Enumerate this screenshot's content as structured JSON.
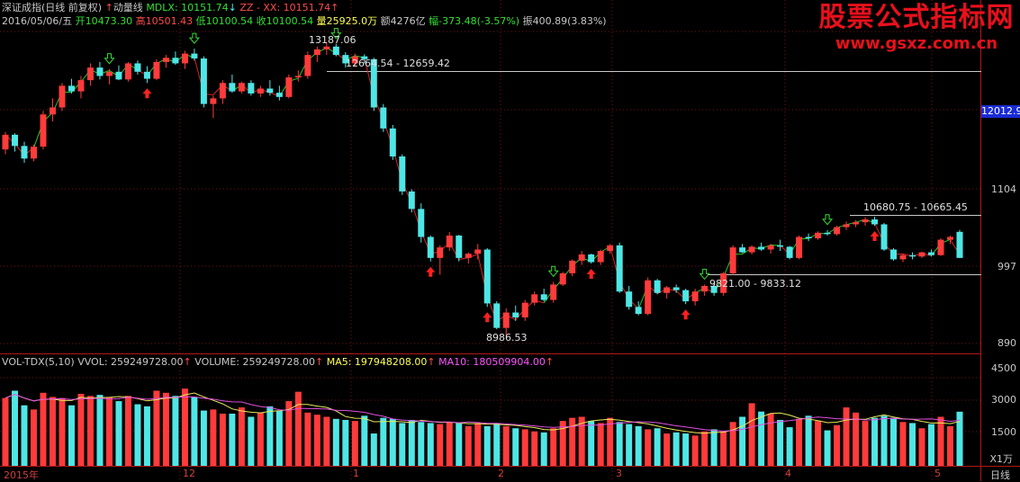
{
  "header": {
    "title": "深证成指(日线 前复权)",
    "indicator_name": "动量线",
    "mdlx": "MDLX: 10151.74",
    "zz": "ZZ - XX: 10151.74",
    "ohlc": {
      "date": "2016/05/06/五",
      "open": "开10473.30",
      "high": "高10501.43",
      "low": "低10100.54",
      "close": "收10100.54",
      "volume": "量25925.0万",
      "amount": "额4276亿",
      "change": "幅-373.48(-3.57%)",
      "amplitude": "振400.89(3.83%)"
    }
  },
  "watermark": {
    "title": "股票公式指标网",
    "url": "www.gsxz.com.cn"
  },
  "price_axis": {
    "labels": [
      "1104",
      "997",
      "890"
    ],
    "highlight": "12012.9"
  },
  "annotations": {
    "peak": "13187.06",
    "range1": "12664.54 - 12659.42",
    "low": "8986.53",
    "range2": "9821.00 - 9833.12",
    "range3": "10680.75 - 10665.45"
  },
  "volume_panel": {
    "name": "VOL-TDX(5,10)",
    "vvol": "VVOL: 259249728.00",
    "volume": "VOLUME: 259249728.00",
    "ma5": "MA5: 197948208.00",
    "ma10": "MA10: 180509904.00",
    "axis_labels": [
      "4500",
      "3000",
      "1500"
    ],
    "unit": "X1万"
  },
  "x_axis": {
    "labels": [
      "2015年",
      "12",
      "1",
      "2",
      "3",
      "4",
      "5"
    ],
    "period": "日线"
  },
  "colors": {
    "up": "#ff3b3b",
    "down": "#4fe6e6",
    "ma5": "#e8e85a",
    "ma10": "#e050e0",
    "grid": "#7a1010"
  },
  "chart_data": {
    "type": "candlestick",
    "price_range": [
      8800,
      13400
    ],
    "volume_range": [
      0,
      5000
    ],
    "candles": [
      [
        11650,
        11900,
        11580,
        11860
      ],
      [
        11860,
        11880,
        11620,
        11700
      ],
      [
        11700,
        11760,
        11460,
        11520
      ],
      [
        11520,
        11720,
        11480,
        11690
      ],
      [
        11690,
        12200,
        11650,
        12150
      ],
      [
        12150,
        12380,
        12050,
        12250
      ],
      [
        12250,
        12600,
        12200,
        12560
      ],
      [
        12560,
        12660,
        12450,
        12480
      ],
      [
        12480,
        12700,
        12380,
        12640
      ],
      [
        12640,
        12880,
        12560,
        12820
      ],
      [
        12820,
        12900,
        12650,
        12700
      ],
      [
        12700,
        12800,
        12580,
        12760
      ],
      [
        12760,
        12850,
        12640,
        12650
      ],
      [
        12650,
        12900,
        12620,
        12880
      ],
      [
        12880,
        12920,
        12720,
        12760
      ],
      [
        12760,
        12840,
        12600,
        12660
      ],
      [
        12660,
        12940,
        12640,
        12900
      ],
      [
        12900,
        13000,
        12820,
        12960
      ],
      [
        12960,
        13050,
        12860,
        12880
      ],
      [
        12880,
        13060,
        12800,
        13020
      ],
      [
        13020,
        13090,
        12920,
        12950
      ],
      [
        12950,
        12980,
        12250,
        12300
      ],
      [
        12300,
        12420,
        12100,
        12380
      ],
      [
        12380,
        12640,
        12300,
        12600
      ],
      [
        12600,
        12720,
        12460,
        12480
      ],
      [
        12480,
        12620,
        12450,
        12600
      ],
      [
        12600,
        12640,
        12420,
        12450
      ],
      [
        12450,
        12560,
        12400,
        12520
      ],
      [
        12520,
        12640,
        12420,
        12460
      ],
      [
        12460,
        12560,
        12350,
        12400
      ],
      [
        12400,
        12720,
        12380,
        12680
      ],
      [
        12680,
        12780,
        12620,
        12700
      ],
      [
        12700,
        13050,
        12660,
        13000
      ],
      [
        13000,
        13120,
        12900,
        13080
      ],
      [
        13080,
        13187,
        13000,
        13120
      ],
      [
        13120,
        13160,
        12980,
        13000
      ],
      [
        13000,
        13040,
        12820,
        12880
      ],
      [
        12880,
        13020,
        12830,
        12980
      ],
      [
        12980,
        13010,
        12880,
        12940
      ],
      [
        12940,
        12960,
        12200,
        12250
      ],
      [
        12250,
        12300,
        11900,
        11950
      ],
      [
        11950,
        12000,
        11500,
        11550
      ],
      [
        11550,
        11580,
        11000,
        11050
      ],
      [
        11050,
        11080,
        10750,
        10800
      ],
      [
        10800,
        10880,
        10320,
        10400
      ],
      [
        10400,
        10420,
        10050,
        10100
      ],
      [
        10100,
        10280,
        9860,
        10250
      ],
      [
        10250,
        10470,
        10200,
        10420
      ],
      [
        10420,
        10430,
        10050,
        10100
      ],
      [
        10100,
        10180,
        10020,
        10160
      ],
      [
        10160,
        10300,
        10080,
        10220
      ],
      [
        10220,
        10240,
        9400,
        9450
      ],
      [
        9450,
        9480,
        9080,
        9100
      ],
      [
        9100,
        9380,
        8986,
        9320
      ],
      [
        9320,
        9420,
        9200,
        9250
      ],
      [
        9250,
        9500,
        9200,
        9460
      ],
      [
        9460,
        9620,
        9420,
        9580
      ],
      [
        9580,
        9660,
        9480,
        9500
      ],
      [
        9500,
        9760,
        9460,
        9720
      ],
      [
        9720,
        9900,
        9700,
        9880
      ],
      [
        9880,
        10080,
        9840,
        10060
      ],
      [
        10060,
        10200,
        10000,
        10150
      ],
      [
        10150,
        10160,
        10020,
        10040
      ],
      [
        10040,
        10220,
        10000,
        10200
      ],
      [
        10200,
        10300,
        10160,
        10280
      ],
      [
        10280,
        10320,
        9600,
        9620
      ],
      [
        9620,
        9700,
        9360,
        9400
      ],
      [
        9400,
        9480,
        9280,
        9300
      ],
      [
        9300,
        9820,
        9280,
        9780
      ],
      [
        9780,
        9800,
        9580,
        9600
      ],
      [
        9600,
        9700,
        9520,
        9680
      ],
      [
        9680,
        9720,
        9600,
        9640
      ],
      [
        9640,
        9660,
        9440,
        9480
      ],
      [
        9480,
        9660,
        9420,
        9620
      ],
      [
        9620,
        9720,
        9560,
        9700
      ],
      [
        9700,
        9740,
        9560,
        9600
      ],
      [
        9600,
        9900,
        9560,
        9880
      ],
      [
        9880,
        10280,
        9860,
        10250
      ],
      [
        10250,
        10300,
        10170,
        10180
      ],
      [
        10180,
        10280,
        10150,
        10260
      ],
      [
        10260,
        10320,
        10200,
        10220
      ],
      [
        10220,
        10300,
        10160,
        10280
      ],
      [
        10280,
        10360,
        10200,
        10260
      ],
      [
        10260,
        10270,
        10080,
        10100
      ],
      [
        10100,
        10420,
        10080,
        10400
      ],
      [
        10400,
        10450,
        10340,
        10380
      ],
      [
        10380,
        10480,
        10360,
        10460
      ],
      [
        10460,
        10500,
        10420,
        10440
      ],
      [
        10440,
        10560,
        10420,
        10540
      ],
      [
        10540,
        10620,
        10500,
        10580
      ],
      [
        10580,
        10640,
        10540,
        10610
      ],
      [
        10610,
        10680,
        10560,
        10650
      ],
      [
        10650,
        10690,
        10560,
        10580
      ],
      [
        10580,
        10600,
        10200,
        10220
      ],
      [
        10220,
        10240,
        10060,
        10080
      ],
      [
        10080,
        10160,
        10040,
        10140
      ],
      [
        10140,
        10180,
        10080,
        10120
      ],
      [
        10120,
        10190,
        10100,
        10180
      ],
      [
        10180,
        10220,
        10120,
        10140
      ],
      [
        10140,
        10380,
        10130,
        10360
      ],
      [
        10360,
        10420,
        10300,
        10400
      ],
      [
        10473,
        10501,
        10100,
        10100
      ]
    ],
    "volume": [
      3250,
      3600,
      2900,
      2700,
      3500,
      3300,
      3250,
      2900,
      3450,
      3350,
      3400,
      3300,
      3100,
      3350,
      2950,
      2850,
      3600,
      3500,
      3350,
      3700,
      3300,
      2650,
      2700,
      2500,
      2500,
      2800,
      2350,
      2550,
      2850,
      2650,
      3100,
      3550,
      2550,
      2450,
      2350,
      2250,
      2200,
      2150,
      2400,
      1550,
      2300,
      2250,
      2050,
      2200,
      2100,
      2050,
      2000,
      2100,
      2050,
      1900,
      2050,
      1900,
      2050,
      1900,
      1800,
      1750,
      1650,
      1600,
      1800,
      2150,
      2300,
      2350,
      2150,
      2050,
      2300,
      2100,
      2000,
      1900,
      1750,
      1800,
      1550,
      1600,
      1550,
      1450,
      1650,
      1750,
      1650,
      2100,
      2350,
      3000,
      2600,
      2500,
      2200,
      1850,
      2250,
      2400,
      2150,
      1700,
      1950,
      2800,
      2550,
      2150,
      2300,
      2400,
      2300,
      2100,
      2050,
      1800,
      2000,
      2350,
      1900,
      2594
    ]
  }
}
